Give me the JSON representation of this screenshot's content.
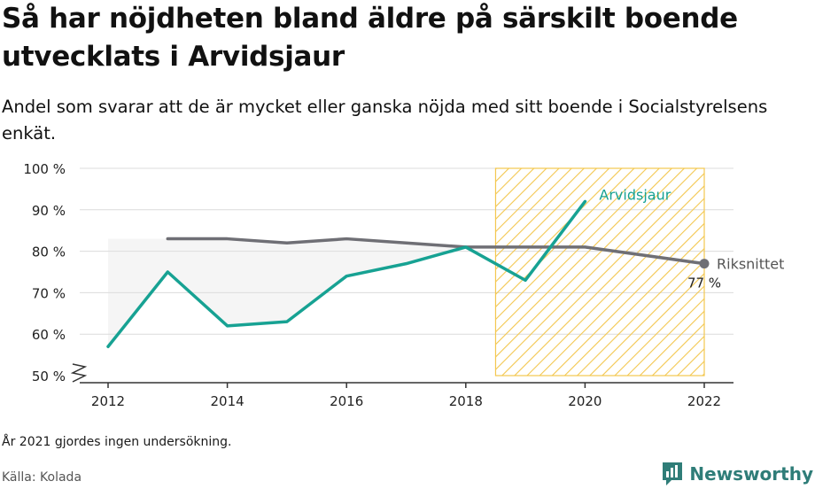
{
  "title": "Så har nöjdheten bland äldre på särskilt boende utvecklats i Arvidsjaur",
  "subtitle": "Andel som svarar att de är mycket eller ganska nöjda med sitt boende i Socialstyrelsens enkät.",
  "note": "År 2021 gjordes ingen undersökning.",
  "source": "Källa: Kolada",
  "brand": "Newsworthy",
  "colors": {
    "arvidsjaur": "#17a293",
    "riket": "#6f6f75",
    "hatch": "#f3c74f",
    "band": "#ececec",
    "brand": "#2f7d78"
  },
  "chart_data": {
    "type": "line",
    "x_ticks": [
      "2012",
      "2014",
      "2016",
      "2018",
      "2020",
      "2022"
    ],
    "y_ticks": [
      {
        "value": 50,
        "label": "50 %"
      },
      {
        "value": 60,
        "label": "60 %"
      },
      {
        "value": 70,
        "label": "70 %"
      },
      {
        "value": 80,
        "label": "80 %"
      },
      {
        "value": 90,
        "label": "90 %"
      },
      {
        "value": 100,
        "label": "100 %"
      }
    ],
    "xlim": [
      2012,
      2022
    ],
    "ylim": [
      50,
      100
    ],
    "y_axis_break": true,
    "grid": true,
    "highlight_period": [
      2018.5,
      2022
    ],
    "series": [
      {
        "name": "Arvidsjaur",
        "key": "arvidsjaur",
        "x": [
          2012,
          2013,
          2014,
          2015,
          2016,
          2017,
          2018,
          2019,
          2020
        ],
        "y": [
          57,
          75,
          62,
          63,
          74,
          77,
          81,
          73,
          92
        ]
      },
      {
        "name": "Riksnittet",
        "key": "riket",
        "x": [
          2013,
          2014,
          2015,
          2016,
          2017,
          2018,
          2019,
          2020,
          2022
        ],
        "y": [
          83,
          83,
          82,
          83,
          82,
          81,
          81,
          81,
          77
        ]
      }
    ],
    "end_value_label": "77 %"
  }
}
